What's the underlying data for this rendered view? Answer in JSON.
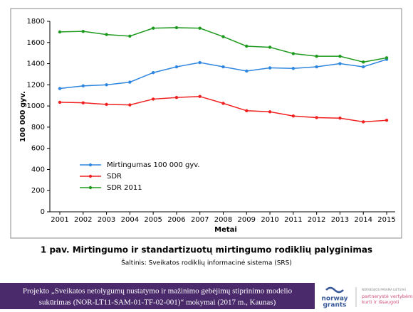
{
  "chart_data": {
    "type": "line",
    "x_label": "Metai",
    "y_label": "100 000 gyv.",
    "categories": [
      "2001",
      "2002",
      "2003",
      "2004",
      "2005",
      "2006",
      "2007",
      "2008",
      "2009",
      "2010",
      "2011",
      "2012",
      "2013",
      "2014",
      "2015"
    ],
    "series": [
      {
        "name": "Mirtingumas 100 000 gyv.",
        "color": "#2e86de",
        "values": [
          1165,
          1190,
          1200,
          1225,
          1315,
          1370,
          1410,
          1370,
          1330,
          1360,
          1355,
          1370,
          1400,
          1370,
          1440
        ]
      },
      {
        "name": "SDR",
        "color": "#f02020",
        "values": [
          1035,
          1030,
          1015,
          1010,
          1065,
          1080,
          1090,
          1025,
          955,
          945,
          905,
          890,
          885,
          850,
          865
        ]
      },
      {
        "name": "SDR 2011",
        "color": "#1e9a1e",
        "values": [
          1700,
          1705,
          1675,
          1660,
          1735,
          1740,
          1735,
          1655,
          1565,
          1555,
          1495,
          1470,
          1470,
          1415,
          1455
        ]
      }
    ],
    "ylim": [
      0,
      1800
    ],
    "yticks": [
      0,
      200,
      400,
      600,
      800,
      1000,
      1200,
      1400,
      1600,
      1800
    ],
    "grid": false
  },
  "caption": "1 pav. Mirtingumo ir standartizuotų mirtingumo rodiklių palyginimas",
  "source": "Šaltinis: Sveikatos rodiklių informacinė sistema (SRS)",
  "footer": {
    "lines": [
      "Projekto „Sveikatos netolygumų nustatymo ir mažinimo gebėjimų stiprinimo modelio",
      "sukūrimas (NOR-LT11-SAM-01-TF-02-001)“ mokymai (2017 m., Kaunas)"
    ]
  },
  "logo": {
    "lines": [
      "norway",
      "grants"
    ]
  },
  "partner": {
    "lines": [
      "NORVEGIJOS PARAMA LIETUVAI",
      "partnerystė vertybėms",
      "kurti ir išsaugoti"
    ]
  }
}
